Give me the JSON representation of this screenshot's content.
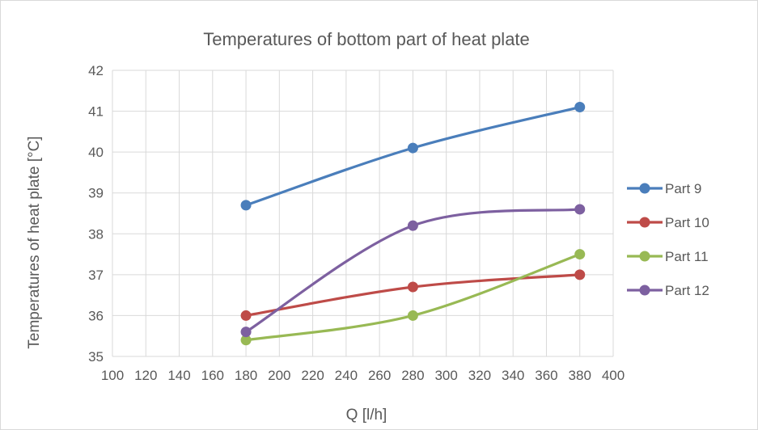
{
  "chart_data": {
    "type": "line",
    "title": "Temperatures of bottom part of heat plate",
    "xlabel": "Q [l/h]",
    "ylabel": "Temperatures of heat plate [°C]",
    "xlim": [
      100,
      400
    ],
    "ylim": [
      35,
      42
    ],
    "xticks": [
      "100",
      "120",
      "140",
      "160",
      "180",
      "200",
      "220",
      "240",
      "260",
      "280",
      "300",
      "320",
      "340",
      "360",
      "380",
      "400"
    ],
    "yticks": [
      "35",
      "36",
      "37",
      "38",
      "39",
      "40",
      "41",
      "42"
    ],
    "grid": true,
    "legend_position": "right",
    "x": [
      180,
      280,
      380
    ],
    "series": [
      {
        "name": "Part 9",
        "values": [
          38.7,
          40.1,
          41.1
        ],
        "color": "#4a7ebb"
      },
      {
        "name": "Part 10",
        "values": [
          36.0,
          36.7,
          37.0
        ],
        "color": "#be4b48"
      },
      {
        "name": "Part 11",
        "values": [
          35.4,
          36.0,
          37.5
        ],
        "color": "#98b954"
      },
      {
        "name": "Part 12",
        "values": [
          35.6,
          38.2,
          38.6
        ],
        "color": "#7d60a0"
      }
    ]
  }
}
